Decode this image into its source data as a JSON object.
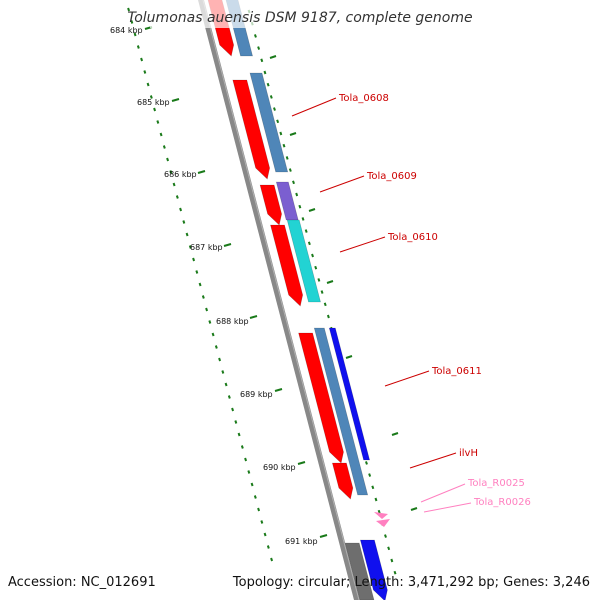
{
  "title": "Tolumonas auensis DSM 9187, complete genome",
  "footer": {
    "accession": "Accession: NC_012691",
    "summary": "Topology: circular; Length: 3,471,292 bp; Genes: 3,246"
  },
  "colors": {
    "backbone": "#888888",
    "tick_green": "#1a7a1a",
    "gene_red": "#ff0000",
    "gene_steel": "#4f86b8",
    "gene_purple": "#7b5fd0",
    "gene_cyan": "#22d3d3",
    "gene_blue": "#1010ee",
    "gene_gray": "#6e6e6e",
    "rna_pink": "#ff80c0",
    "label_red": "#cc0000",
    "label_pink": "#ff80c0"
  },
  "kbp_labels": [
    "684 kbp",
    "685 kbp",
    "686 kbp",
    "687 kbp",
    "688 kbp",
    "689 kbp",
    "690 kbp",
    "691 kbp"
  ],
  "gene_labels": [
    {
      "text": "Tola_0608",
      "color": "label_red"
    },
    {
      "text": "Tola_0609",
      "color": "label_red"
    },
    {
      "text": "Tola_0610",
      "color": "label_red"
    },
    {
      "text": "Tola_0611",
      "color": "label_red"
    },
    {
      "text": "ilvH",
      "color": "label_red"
    },
    {
      "text": "Tola_R0025",
      "color": "label_pink"
    },
    {
      "text": "Tola_R0026",
      "color": "label_pink"
    }
  ]
}
